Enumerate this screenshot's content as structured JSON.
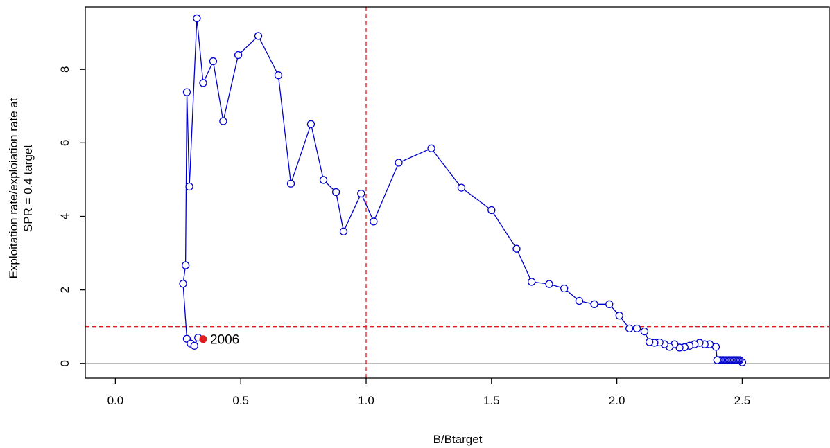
{
  "chart_data": {
    "type": "line",
    "xlabel": "B/Btarget",
    "ylabel_lines": [
      "Exploitation rate/exploiation rate at",
      "SPR = 0.4 target"
    ],
    "xlim": [
      -0.12,
      2.85
    ],
    "ylim": [
      -0.4,
      9.7
    ],
    "x_ticks": [
      0.0,
      0.5,
      1.0,
      1.5,
      2.0,
      2.5
    ],
    "x_tick_labels": [
      "0.0",
      "0.5",
      "1.0",
      "1.5",
      "2.0",
      "2.5"
    ],
    "y_ticks": [
      0,
      2,
      4,
      6,
      8
    ],
    "y_tick_labels": [
      "0",
      "2",
      "4",
      "6",
      "8"
    ],
    "reference_lines": {
      "vertical_x": 1.0,
      "horizontal_y": 1.0,
      "baseline_y": 0,
      "color": "#e31a1c"
    },
    "series": [
      {
        "color": "#0000cc",
        "points": [
          [
            2.5,
            0.03
          ],
          [
            2.49,
            0.09
          ],
          [
            2.485,
            0.09
          ],
          [
            2.48,
            0.09
          ],
          [
            2.475,
            0.09
          ],
          [
            2.47,
            0.09
          ],
          [
            2.465,
            0.09
          ],
          [
            2.46,
            0.09
          ],
          [
            2.455,
            0.09
          ],
          [
            2.45,
            0.09
          ],
          [
            2.445,
            0.09
          ],
          [
            2.44,
            0.09
          ],
          [
            2.435,
            0.09
          ],
          [
            2.43,
            0.09
          ],
          [
            2.425,
            0.09
          ],
          [
            2.42,
            0.09
          ],
          [
            2.415,
            0.09
          ],
          [
            2.41,
            0.09
          ],
          [
            2.405,
            0.09
          ],
          [
            2.4,
            0.09
          ],
          [
            2.395,
            0.45
          ],
          [
            2.37,
            0.52
          ],
          [
            2.35,
            0.52
          ],
          [
            2.33,
            0.56
          ],
          [
            2.31,
            0.52
          ],
          [
            2.29,
            0.48
          ],
          [
            2.27,
            0.44
          ],
          [
            2.25,
            0.43
          ],
          [
            2.23,
            0.52
          ],
          [
            2.21,
            0.45
          ],
          [
            2.19,
            0.52
          ],
          [
            2.17,
            0.57
          ],
          [
            2.15,
            0.56
          ],
          [
            2.13,
            0.58
          ],
          [
            2.11,
            0.87
          ],
          [
            2.08,
            0.95
          ],
          [
            2.05,
            0.95
          ],
          [
            2.01,
            1.3
          ],
          [
            1.97,
            1.61
          ],
          [
            1.91,
            1.61
          ],
          [
            1.85,
            1.7
          ],
          [
            1.79,
            2.04
          ],
          [
            1.73,
            2.16
          ],
          [
            1.66,
            2.22
          ],
          [
            1.6,
            3.12
          ],
          [
            1.5,
            4.17
          ],
          [
            1.38,
            4.78
          ],
          [
            1.26,
            5.85
          ],
          [
            1.13,
            5.46
          ],
          [
            1.03,
            3.86
          ],
          [
            0.98,
            4.62
          ],
          [
            0.91,
            3.59
          ],
          [
            0.88,
            4.66
          ],
          [
            0.83,
            4.99
          ],
          [
            0.78,
            6.51
          ],
          [
            0.7,
            4.89
          ],
          [
            0.65,
            7.84
          ],
          [
            0.57,
            8.91
          ],
          [
            0.49,
            8.39
          ],
          [
            0.43,
            6.59
          ],
          [
            0.39,
            8.22
          ],
          [
            0.35,
            7.63
          ],
          [
            0.325,
            9.39
          ],
          [
            0.295,
            4.81
          ],
          [
            0.285,
            7.38
          ],
          [
            0.28,
            2.67
          ],
          [
            0.27,
            2.17
          ],
          [
            0.285,
            0.67
          ],
          [
            0.3,
            0.54
          ],
          [
            0.315,
            0.48
          ],
          [
            0.33,
            0.7
          ]
        ]
      }
    ],
    "highlight_point": {
      "x": 0.35,
      "y": 0.66,
      "label": "2006",
      "color": "#e31a1c"
    }
  }
}
